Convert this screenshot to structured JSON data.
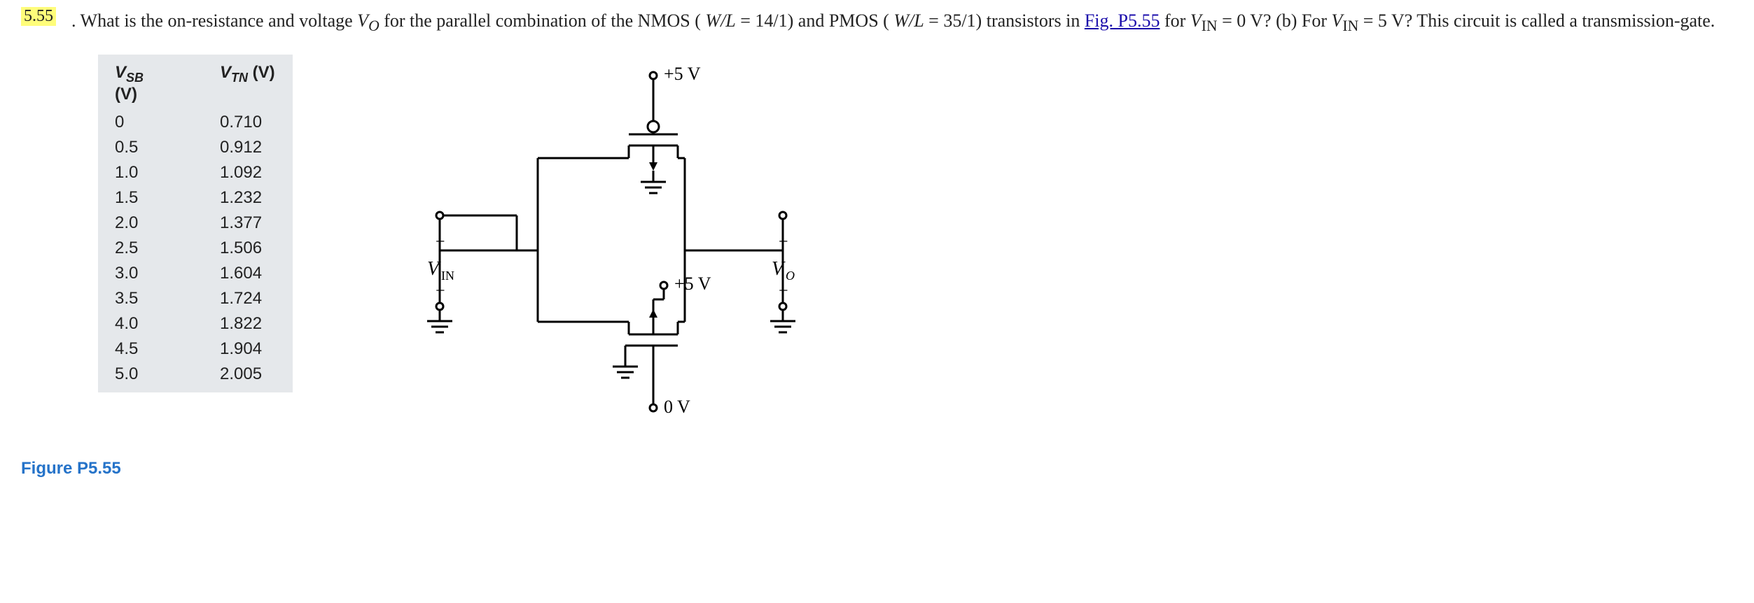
{
  "problem": {
    "number": "5.55",
    "textFragments": {
      "lead": ".  What is the on-resistance and voltage ",
      "vo": "V",
      "voSub": "O",
      "afterVo": " for the parallel combination of the NMOS (",
      "wl1": "W/L",
      "eq1": " = 14/1) and PMOS (",
      "wl2": "W/L",
      "eq2": " = 35/1) transistors in ",
      "figLink": "Fig. P5.55",
      "for": " for ",
      "vin": "V",
      "vinSub": "IN",
      "eq3": " = 0 V? (b) For ",
      "vin2": "V",
      "vinSub2": "IN",
      "eq4": " = 5 V? This circuit is called a transmission-gate."
    }
  },
  "table": {
    "headers": {
      "col1": "V",
      "col1sub": "SB",
      "col1unit": " (V)",
      "col2": "V",
      "col2sub": "TN",
      "col2unit": " (V)"
    },
    "rows": [
      {
        "vsb": "0",
        "vtn": "0.710"
      },
      {
        "vsb": "0.5",
        "vtn": "0.912"
      },
      {
        "vsb": "1.0",
        "vtn": "1.092"
      },
      {
        "vsb": "1.5",
        "vtn": "1.232"
      },
      {
        "vsb": "2.0",
        "vtn": "1.377"
      },
      {
        "vsb": "2.5",
        "vtn": "1.506"
      },
      {
        "vsb": "3.0",
        "vtn": "1.604"
      },
      {
        "vsb": "3.5",
        "vtn": "1.724"
      },
      {
        "vsb": "4.0",
        "vtn": "1.822"
      },
      {
        "vsb": "4.5",
        "vtn": "1.904"
      },
      {
        "vsb": "5.0",
        "vtn": "2.005"
      }
    ]
  },
  "circuit": {
    "top_label": "+5 V",
    "mid_label": "+5 V",
    "bottom_label": "0 V",
    "in_label": "V",
    "in_sub": "IN",
    "out_label": "V",
    "out_sub": "O",
    "plus": "+",
    "minus": "−",
    "stroke": "#000000",
    "stroke_width": 3,
    "text_color": "#000000"
  },
  "figCaption": "Figure P5.55"
}
